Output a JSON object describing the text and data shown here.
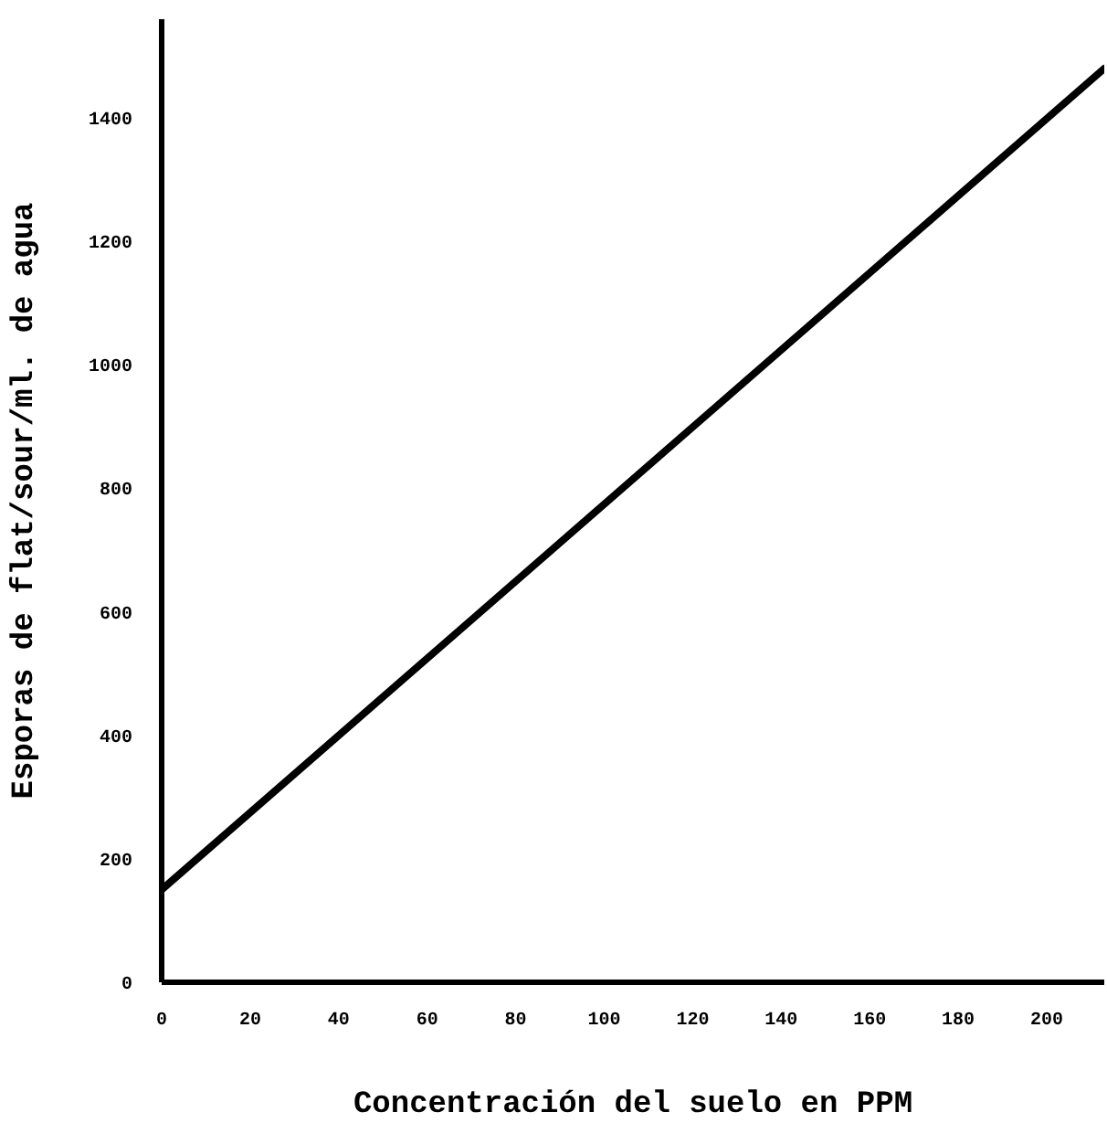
{
  "chart_data": {
    "type": "line",
    "xlabel": "Concentración del suelo en PPM",
    "ylabel": "Esporas de flat/sour/ml. de agua",
    "x": [
      0,
      213
    ],
    "series": [
      {
        "color": "#000000",
        "values": [
          150,
          1480
        ]
      }
    ],
    "xlim": [
      0,
      213
    ],
    "ylim": [
      0,
      1560
    ],
    "xticks": [
      0,
      20,
      40,
      60,
      80,
      100,
      120,
      140,
      160,
      180,
      200
    ],
    "yticks": [
      0,
      200,
      400,
      600,
      800,
      1000,
      1200,
      1400
    ],
    "grid": false,
    "line_style": "solid"
  }
}
